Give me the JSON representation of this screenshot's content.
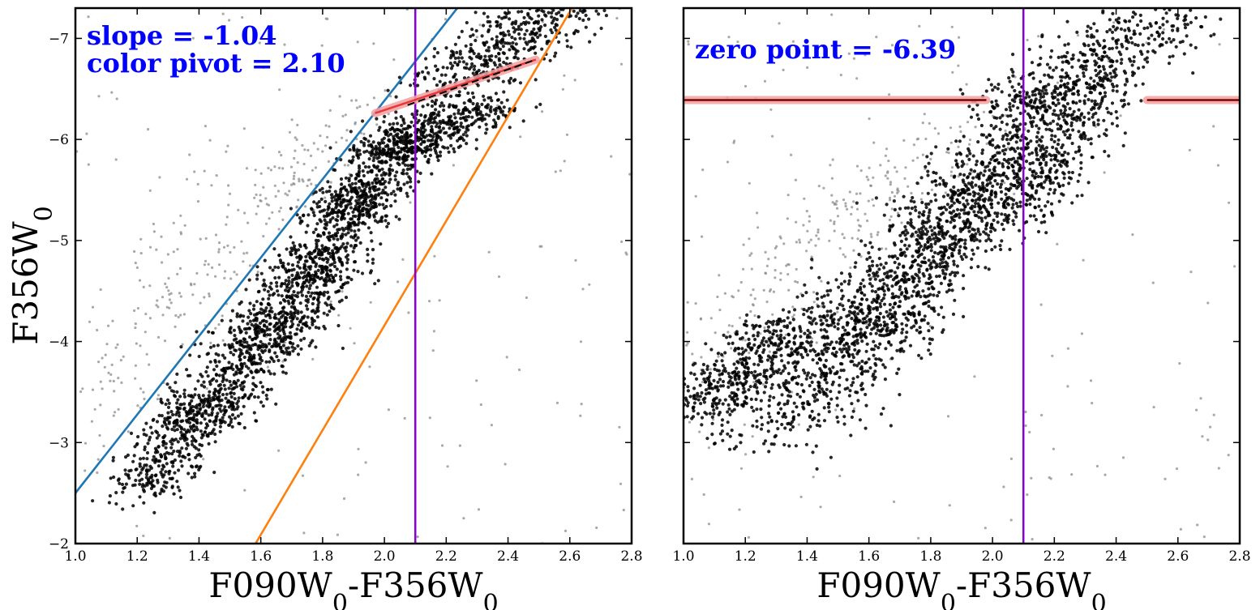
{
  "chart_data": [
    {
      "type": "scatter",
      "panel": "left",
      "xlabel": "F090W₀-F356W₀",
      "xlabel_main_a": "F090W",
      "xlabel_sub_a": "0",
      "xlabel_sep": "-F356W",
      "xlabel_sub_b": "0",
      "ylabel": "F356W₀",
      "ylabel_main": "F356W",
      "ylabel_sub": "0",
      "xlim": [
        1.0,
        2.8
      ],
      "ylim": [
        -2.0,
        -7.3
      ],
      "y_inverted": true,
      "xticks": [
        1.0,
        1.2,
        1.4,
        1.6,
        1.8,
        2.0,
        2.2,
        2.4,
        2.6,
        2.8
      ],
      "xtick_labels": [
        "1.0",
        "1.2",
        "1.4",
        "1.6",
        "1.8",
        "2.0",
        "2.2",
        "2.4",
        "2.6",
        "2.8"
      ],
      "yticks": [
        -2,
        -3,
        -4,
        -5,
        -6,
        -7
      ],
      "ytick_labels": [
        "−2",
        "−3",
        "−4",
        "−5",
        "−6",
        "−7"
      ],
      "annotations": [
        "slope = -1.04",
        "color pivot = 2.10"
      ],
      "annotation_color": "#0000ff",
      "series": [
        {
          "name": "selected stars",
          "kind": "points",
          "color": "#000000",
          "description": "dense black cloud of RGB stars between the two bounding lines, upper edge near F356W0 = -6.3 at color 2.0",
          "cloud": [
            {
              "x": [
                1.2,
                1.45
              ],
              "y": [
                -2.5,
                -3.5
              ]
            },
            {
              "x": [
                1.4,
                1.7
              ],
              "y": [
                -3.2,
                -4.3
              ]
            },
            {
              "x": [
                1.55,
                1.85
              ],
              "y": [
                -3.8,
                -4.9
              ]
            },
            {
              "x": [
                1.7,
                1.95
              ],
              "y": [
                -4.5,
                -5.5
              ]
            },
            {
              "x": [
                1.85,
                2.1
              ],
              "y": [
                -5.2,
                -6.1
              ]
            },
            {
              "x": [
                2.0,
                2.35
              ],
              "y": [
                -5.8,
                -6.4
              ]
            },
            {
              "x": [
                2.2,
                2.55
              ],
              "y": [
                -6.5,
                -7.3
              ]
            }
          ]
        },
        {
          "name": "rejected stars",
          "kind": "points",
          "color": "#8c8c8c",
          "description": "sparse grey field stars, mostly blueward of the blue line",
          "cloud": [
            {
              "x": [
                1.0,
                1.4
              ],
              "y": [
                -3.0,
                -4.7
              ]
            },
            {
              "x": [
                1.3,
                1.7
              ],
              "y": [
                -4.3,
                -5.8
              ]
            },
            {
              "x": [
                1.6,
                1.9
              ],
              "y": [
                -5.3,
                -6.3
              ]
            },
            {
              "x": [
                1.0,
                2.8
              ],
              "y": [
                -2.0,
                -7.3
              ]
            }
          ]
        },
        {
          "name": "blue boundary",
          "kind": "line",
          "color": "#1f77b4",
          "x": [
            1.0,
            2.236
          ],
          "y": [
            -2.5,
            -7.3
          ]
        },
        {
          "name": "orange boundary",
          "kind": "line",
          "color": "#ff7f0e",
          "x": [
            1.583,
            2.607
          ],
          "y": [
            -2.0,
            -7.3
          ]
        },
        {
          "name": "color pivot",
          "kind": "vline",
          "color": "#8a00d4",
          "x": 2.1
        },
        {
          "name": "TRGB slope fit",
          "kind": "line",
          "color": "#e8373a",
          "band_color": "#f4a0a0",
          "x": [
            1.97,
            2.49
          ],
          "y": [
            -6.26,
            -6.79
          ]
        }
      ]
    },
    {
      "type": "scatter",
      "panel": "right",
      "xlabel": "F090W₀-F356W₀",
      "xlabel_main_a": "F090W",
      "xlabel_sub_a": "0",
      "xlabel_sep": "-F356W",
      "xlabel_sub_b": "0",
      "xlim": [
        1.0,
        2.8
      ],
      "ylim": [
        -2.0,
        -7.3
      ],
      "y_inverted": true,
      "xticks": [
        1.0,
        1.2,
        1.4,
        1.6,
        1.8,
        2.0,
        2.2,
        2.4,
        2.6,
        2.8
      ],
      "xtick_labels": [
        "1.0",
        "1.2",
        "1.4",
        "1.6",
        "1.8",
        "2.0",
        "2.2",
        "2.4",
        "2.6",
        "2.8"
      ],
      "yticks": [
        -2,
        -3,
        -4,
        -5,
        -6,
        -7
      ],
      "annotations": [
        "zero point = -6.39"
      ],
      "annotation_color": "#0000ff",
      "series": [
        {
          "name": "selected stars (slope corrected)",
          "kind": "points",
          "color": "#000000",
          "description": "dense black cloud, bottom near -2.7, upper edge at the zero point around color 2.0-2.1",
          "cloud": [
            {
              "x": [
                1.05,
                1.35
              ],
              "y": [
                -3.3,
                -4.2
              ]
            },
            {
              "x": [
                1.25,
                1.6
              ],
              "y": [
                -3.0,
                -4.6
              ]
            },
            {
              "x": [
                1.45,
                1.8
              ],
              "y": [
                -3.3,
                -5.2
              ]
            },
            {
              "x": [
                1.65,
                1.95
              ],
              "y": [
                -3.9,
                -5.8
              ]
            },
            {
              "x": [
                1.85,
                2.15
              ],
              "y": [
                -4.8,
                -6.3
              ]
            },
            {
              "x": [
                2.05,
                2.35
              ],
              "y": [
                -5.2,
                -6.6
              ]
            },
            {
              "x": [
                2.1,
                2.55
              ],
              "y": [
                -6.3,
                -7.2
              ]
            }
          ]
        },
        {
          "name": "rejected stars",
          "kind": "points",
          "color": "#8c8c8c",
          "description": "grey stars above and blueward of the black cloud",
          "cloud": [
            {
              "x": [
                1.0,
                1.4
              ],
              "y": [
                -3.4,
                -5.0
              ]
            },
            {
              "x": [
                1.2,
                1.7
              ],
              "y": [
                -4.2,
                -5.8
              ]
            },
            {
              "x": [
                1.5,
                1.95
              ],
              "y": [
                -5.0,
                -6.2
              ]
            },
            {
              "x": [
                1.0,
                2.8
              ],
              "y": [
                -2.0,
                -7.3
              ]
            }
          ]
        },
        {
          "name": "zero point (left segment)",
          "kind": "line",
          "color": "#c00000",
          "band_color": "#f4a0a0",
          "x": [
            1.0,
            1.98
          ],
          "y": [
            -6.39,
            -6.39
          ]
        },
        {
          "name": "zero point (right segment)",
          "kind": "line",
          "color": "#c00000",
          "band_color": "#f4a0a0",
          "x": [
            2.5,
            2.8
          ],
          "y": [
            -6.39,
            -6.39
          ]
        },
        {
          "name": "color pivot",
          "kind": "vline",
          "color": "#8a00d4",
          "x": 2.1
        }
      ]
    }
  ]
}
